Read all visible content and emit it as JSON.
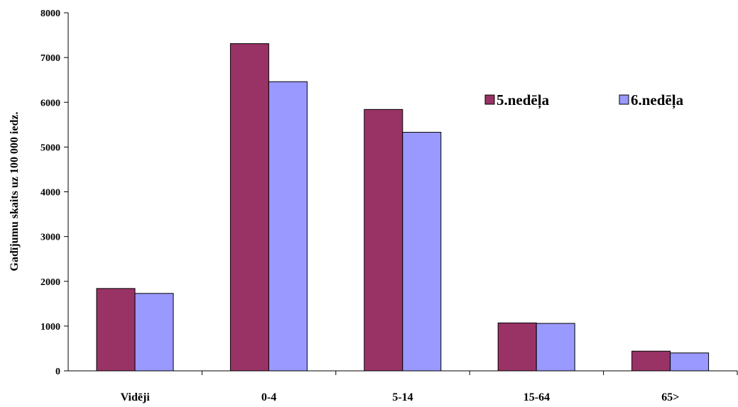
{
  "chart_data": {
    "type": "bar",
    "title": "",
    "xlabel": "",
    "ylabel": "Gadījumu skaits uz 100 000 iedz.",
    "ylim": [
      0,
      8000
    ],
    "yticks": [
      0,
      1000,
      2000,
      3000,
      4000,
      5000,
      6000,
      7000,
      8000
    ],
    "grid": false,
    "legend_position": "top-right",
    "categories": [
      "Vidēji",
      "0-4",
      "5-14",
      "15-64",
      "65>"
    ],
    "series": [
      {
        "name": "5.nedēļa",
        "color": "#993366",
        "values": [
          1840,
          7310,
          5840,
          1070,
          440
        ]
      },
      {
        "name": "6.nedēļa",
        "color": "#9999ff",
        "values": [
          1730,
          6460,
          5330,
          1060,
          400
        ]
      }
    ]
  }
}
